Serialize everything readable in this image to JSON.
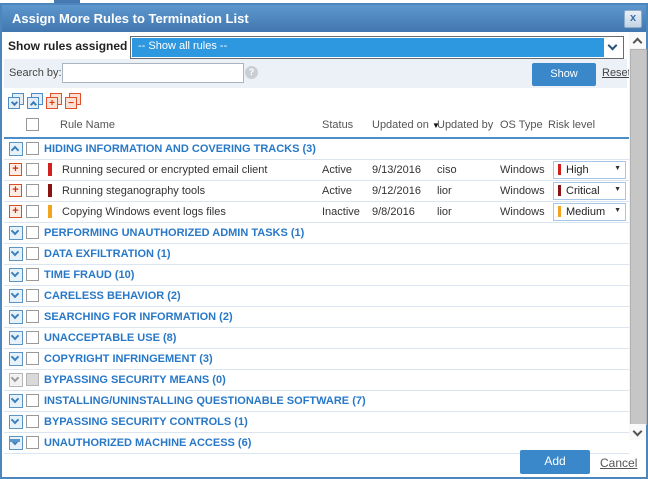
{
  "dialog": {
    "title": "Assign More Rules to Termination List",
    "close_glyph": "x"
  },
  "filter": {
    "label": "Show rules assigned to",
    "selected": "-- Show all rules --"
  },
  "search": {
    "label": "Search by:",
    "value": "",
    "placeholder": "",
    "help_glyph": "?",
    "show_button": "Show",
    "reset_link": "Reset"
  },
  "toolbar": {
    "icons": [
      {
        "name": "expand-all-icon",
        "style": "blue",
        "glyph": "chevron-down"
      },
      {
        "name": "collapse-all-icon",
        "style": "blue",
        "glyph": "chevron-up"
      },
      {
        "name": "check-all-icon",
        "style": "red",
        "glyph": "plus"
      },
      {
        "name": "uncheck-all-icon",
        "style": "red",
        "glyph": "minus"
      }
    ],
    "plus_glyph": "+",
    "minus_glyph": "−"
  },
  "icons": {
    "sort_arrow": "▼",
    "dropdown_arrow": "▼",
    "row_expand_glyph": "+"
  },
  "table": {
    "headers": {
      "rule_name": "Rule Name",
      "status": "Status",
      "updated_on": "Updated on",
      "updated_by": "Updated by",
      "os_type": "OS Type",
      "risk_level": "Risk level"
    },
    "sort_column": "Updated on",
    "groups": [
      {
        "label": "HIDING INFORMATION AND COVERING TRACKS (3)",
        "expanded": true,
        "disabled": false,
        "rules": [
          {
            "name": "Running secured or encrypted email client",
            "status": "Active",
            "updated_on": "9/13/2016",
            "updated_by": "ciso",
            "os_type": "Windows",
            "risk": "High",
            "risk_color": "#d2201f"
          },
          {
            "name": "Running steganography tools",
            "status": "Active",
            "updated_on": "9/12/2016",
            "updated_by": "lior",
            "os_type": "Windows",
            "risk": "Critical",
            "risk_color": "#8c1211"
          },
          {
            "name": "Copying Windows event logs files",
            "status": "Inactive",
            "updated_on": "9/8/2016",
            "updated_by": "lior",
            "os_type": "Windows",
            "risk": "Medium",
            "risk_color": "#f2a41e"
          }
        ]
      },
      {
        "label": "PERFORMING UNAUTHORIZED ADMIN TASKS (1)",
        "expanded": false,
        "disabled": false,
        "rules": []
      },
      {
        "label": "DATA EXFILTRATION (1)",
        "expanded": false,
        "disabled": false,
        "rules": []
      },
      {
        "label": "TIME FRAUD (10)",
        "expanded": false,
        "disabled": false,
        "rules": []
      },
      {
        "label": "CARELESS BEHAVIOR (2)",
        "expanded": false,
        "disabled": false,
        "rules": []
      },
      {
        "label": "SEARCHING FOR INFORMATION (2)",
        "expanded": false,
        "disabled": false,
        "rules": []
      },
      {
        "label": "UNACCEPTABLE USE (8)",
        "expanded": false,
        "disabled": false,
        "rules": []
      },
      {
        "label": "COPYRIGHT INFRINGEMENT (3)",
        "expanded": false,
        "disabled": false,
        "rules": []
      },
      {
        "label": "BYPASSING SECURITY MEANS (0)",
        "expanded": false,
        "disabled": true,
        "rules": []
      },
      {
        "label": "INSTALLING/UNINSTALLING QUESTIONABLE SOFTWARE (7)",
        "expanded": false,
        "disabled": false,
        "rules": []
      },
      {
        "label": "BYPASSING SECURITY CONTROLS (1)",
        "expanded": false,
        "disabled": false,
        "rules": []
      },
      {
        "label": "UNAUTHORIZED MACHINE ACCESS (6)",
        "expanded": false,
        "disabled": false,
        "rules": []
      }
    ]
  },
  "footer": {
    "add_button": "Add",
    "cancel_link": "Cancel"
  },
  "colors": {
    "accent_blue": "#3a87c9",
    "highlight_blue": "#2d97e0",
    "category_blue": "#2878c8",
    "titlebar_blue": "#4d86bd"
  }
}
